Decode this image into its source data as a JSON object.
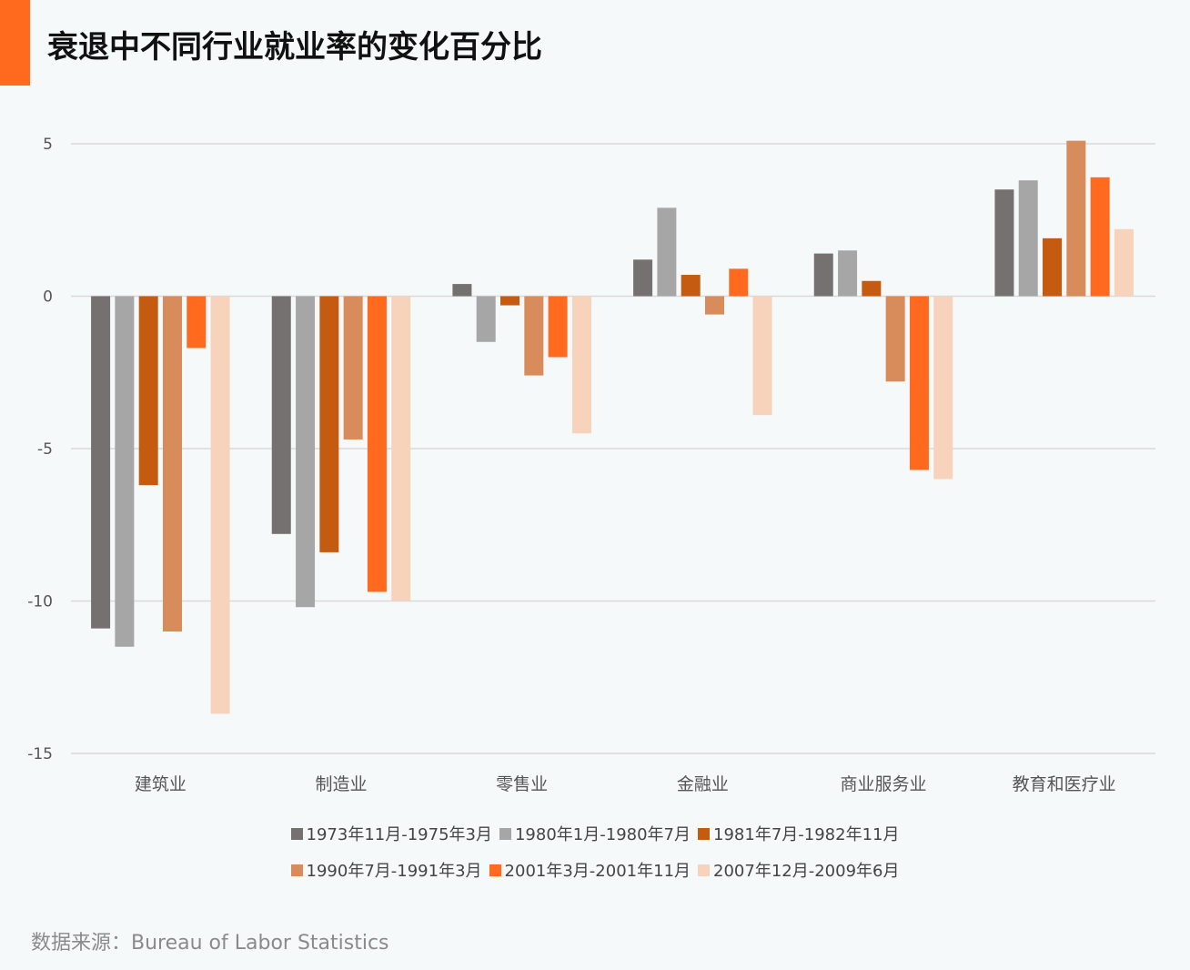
{
  "source": "数据来源：Bureau of Labor Statistics",
  "chart_data": {
    "type": "bar",
    "title": "衰退中不同行业就业率的变化百分比",
    "xlabel": "",
    "ylabel": "",
    "ylim": [
      -15,
      5
    ],
    "yticks": [
      5,
      0,
      -5,
      -10,
      -15
    ],
    "ytick_labels": [
      "5",
      "0",
      "-5",
      "-10",
      "-15"
    ],
    "grid": true,
    "legend_position": "bottom",
    "categories": [
      "建筑业",
      "制造业",
      "零售业",
      "金融业",
      "商业服务业",
      "教育和医疗业"
    ],
    "series": [
      {
        "name": "1973年11月-1975年3月",
        "color": "#757170",
        "values": [
          -10.9,
          -7.8,
          0.4,
          1.2,
          1.4,
          3.5
        ]
      },
      {
        "name": "1980年1月-1980年7月",
        "color": "#a6a6a6",
        "values": [
          -11.5,
          -10.2,
          -1.5,
          2.9,
          1.5,
          3.8
        ]
      },
      {
        "name": "1981年7月-1982年11月",
        "color": "#c55a11",
        "values": [
          -6.2,
          -8.4,
          -0.3,
          0.7,
          0.5,
          1.9
        ]
      },
      {
        "name": "1990年7月-1991年3月",
        "color": "#d88b5b",
        "values": [
          -11.0,
          -4.7,
          -2.6,
          -0.6,
          -2.8,
          5.1
        ]
      },
      {
        "name": "2001年3月-2001年11月",
        "color": "#ff6a1e",
        "values": [
          -1.7,
          -9.7,
          -2.0,
          0.9,
          -5.7,
          3.9
        ]
      },
      {
        "name": "2007年12月-2009年6月",
        "color": "#f7d3bb",
        "values": [
          -13.7,
          -10.0,
          -4.5,
          -3.9,
          -6.0,
          2.2
        ]
      }
    ]
  }
}
